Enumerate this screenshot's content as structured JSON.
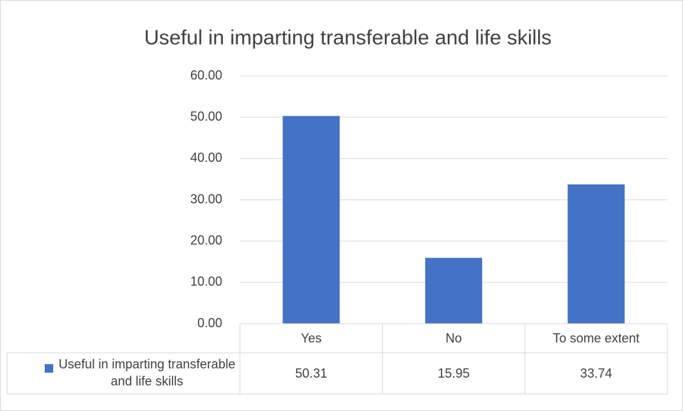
{
  "chart_data": {
    "type": "bar",
    "title": "Useful in imparting transferable and life skills",
    "categories": [
      "Yes",
      "No",
      "To some extent"
    ],
    "series": [
      {
        "name": "Useful in imparting transferable and life skills",
        "color": "#4472c4",
        "values": [
          50.31,
          15.95,
          33.74
        ]
      }
    ],
    "ylim": [
      0,
      60
    ],
    "yticks": [
      {
        "value": 0,
        "label": "0.00"
      },
      {
        "value": 10,
        "label": "10.00"
      },
      {
        "value": 20,
        "label": "20.00"
      },
      {
        "value": 30,
        "label": "30.00"
      },
      {
        "value": 40,
        "label": "40.00"
      },
      {
        "value": 50,
        "label": "50.00"
      },
      {
        "value": 60,
        "label": "60.00"
      }
    ],
    "grid": true,
    "data_table": true
  }
}
